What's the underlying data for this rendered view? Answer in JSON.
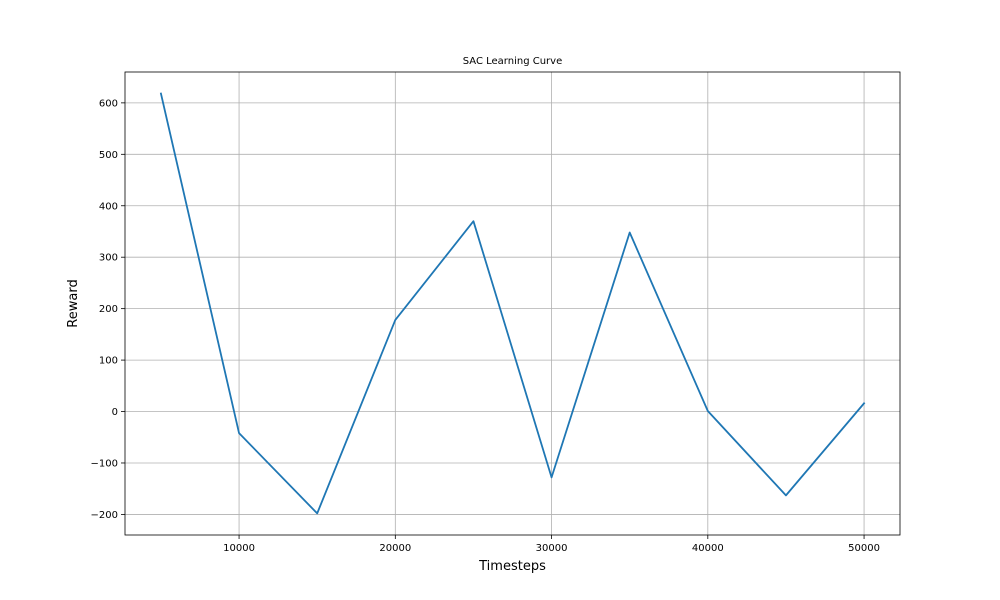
{
  "chart_data": {
    "type": "line",
    "title": "SAC Learning Curve",
    "xlabel": "Timesteps",
    "ylabel": "Reward",
    "xlim": [
      2700,
      52300
    ],
    "ylim": [
      -240,
      660
    ],
    "xticks": [
      10000,
      20000,
      30000,
      40000,
      50000
    ],
    "yticks": [
      -200,
      -100,
      0,
      100,
      200,
      300,
      400,
      500,
      600
    ],
    "xtick_labels": [
      "10000",
      "20000",
      "30000",
      "40000",
      "50000"
    ],
    "ytick_labels": [
      "−200",
      "−100",
      "0",
      "100",
      "200",
      "300",
      "400",
      "500",
      "600"
    ],
    "grid": true,
    "series": [
      {
        "color": "#1f77b4",
        "x": [
          5000,
          10000,
          15000,
          20000,
          25000,
          30000,
          35000,
          40000,
          45000,
          50000
        ],
        "y": [
          618,
          -42,
          -198,
          178,
          370,
          -128,
          348,
          1,
          -163,
          16
        ]
      }
    ]
  }
}
